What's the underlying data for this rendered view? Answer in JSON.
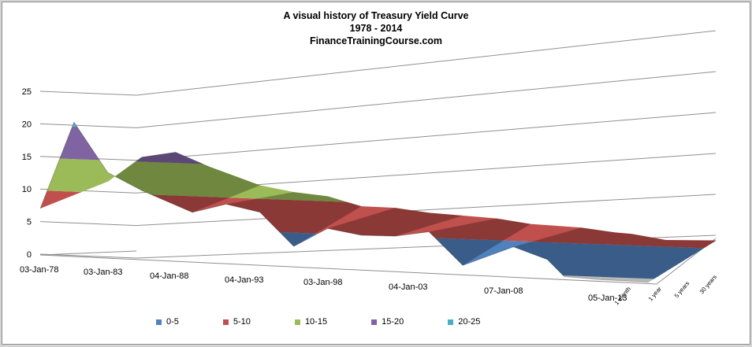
{
  "chart_data": {
    "type": "area",
    "subtype": "3d-surface",
    "title": "A visual history of Treasury Yield  Curve",
    "subtitle_1": "1978 - 2014",
    "subtitle_2": "FinanceTrainingCourse.com",
    "x_tick_labels": [
      "03-Jan-78",
      "03-Jan-83",
      "04-Jan-88",
      "04-Jan-93",
      "03-Jan-98",
      "04-Jan-03",
      "07-Jan-08",
      "05-Jan-13"
    ],
    "depth_tick_labels": [
      "1 month",
      "1 year",
      "5 years",
      "30 years"
    ],
    "y_tick_labels": [
      "0",
      "5",
      "10",
      "15",
      "20",
      "25"
    ],
    "ylim": [
      0,
      25
    ],
    "grid": true,
    "legend_position": "bottom",
    "bands": [
      {
        "name": "0-5",
        "range": [
          0,
          5
        ],
        "color": "#4f81bd"
      },
      {
        "name": "5-10",
        "range": [
          5,
          10
        ],
        "color": "#c0504d"
      },
      {
        "name": "10-15",
        "range": [
          10,
          15
        ],
        "color": "#9bbb59"
      },
      {
        "name": "15-20",
        "range": [
          15,
          20
        ],
        "color": "#8064a2"
      },
      {
        "name": "20-25",
        "range": [
          20,
          25
        ],
        "color": "#4bacc6"
      }
    ],
    "series_front_yield": [
      {
        "x": "1978",
        "y": 7.0
      },
      {
        "x": "1980",
        "y": 20.5
      },
      {
        "x": "1982",
        "y": 13.0
      },
      {
        "x": "1984",
        "y": 10.5
      },
      {
        "x": "1987",
        "y": 7.5
      },
      {
        "x": "1989",
        "y": 9.0
      },
      {
        "x": "1991",
        "y": 8.0
      },
      {
        "x": "1993",
        "y": 3.0
      },
      {
        "x": "1995",
        "y": 6.0
      },
      {
        "x": "1997",
        "y": 5.2
      },
      {
        "x": "1999",
        "y": 5.3
      },
      {
        "x": "2001",
        "y": 6.2
      },
      {
        "x": "2003",
        "y": 1.3
      },
      {
        "x": "2006",
        "y": 4.5
      },
      {
        "x": "2008",
        "y": 2.8
      },
      {
        "x": "2009",
        "y": 0.3
      },
      {
        "x": "2011",
        "y": 0.1
      },
      {
        "x": "2014",
        "y": 0.05
      }
    ],
    "series_back_yield": [
      {
        "x": "1978",
        "y": 8.5
      },
      {
        "x": "1980",
        "y": 12.5
      },
      {
        "x": "1982",
        "y": 13.5
      },
      {
        "x": "1984",
        "y": 11.5
      },
      {
        "x": "1987",
        "y": 9.0
      },
      {
        "x": "1989",
        "y": 8.2
      },
      {
        "x": "1991",
        "y": 7.8
      },
      {
        "x": "1993",
        "y": 6.5
      },
      {
        "x": "1995",
        "y": 6.5
      },
      {
        "x": "1997",
        "y": 6.0
      },
      {
        "x": "1999",
        "y": 5.8
      },
      {
        "x": "2001",
        "y": 5.6
      },
      {
        "x": "2003",
        "y": 5.0
      },
      {
        "x": "2006",
        "y": 4.8
      },
      {
        "x": "2008",
        "y": 4.3
      },
      {
        "x": "2009",
        "y": 4.2
      },
      {
        "x": "2011",
        "y": 3.5
      },
      {
        "x": "2014",
        "y": 3.8
      }
    ]
  }
}
